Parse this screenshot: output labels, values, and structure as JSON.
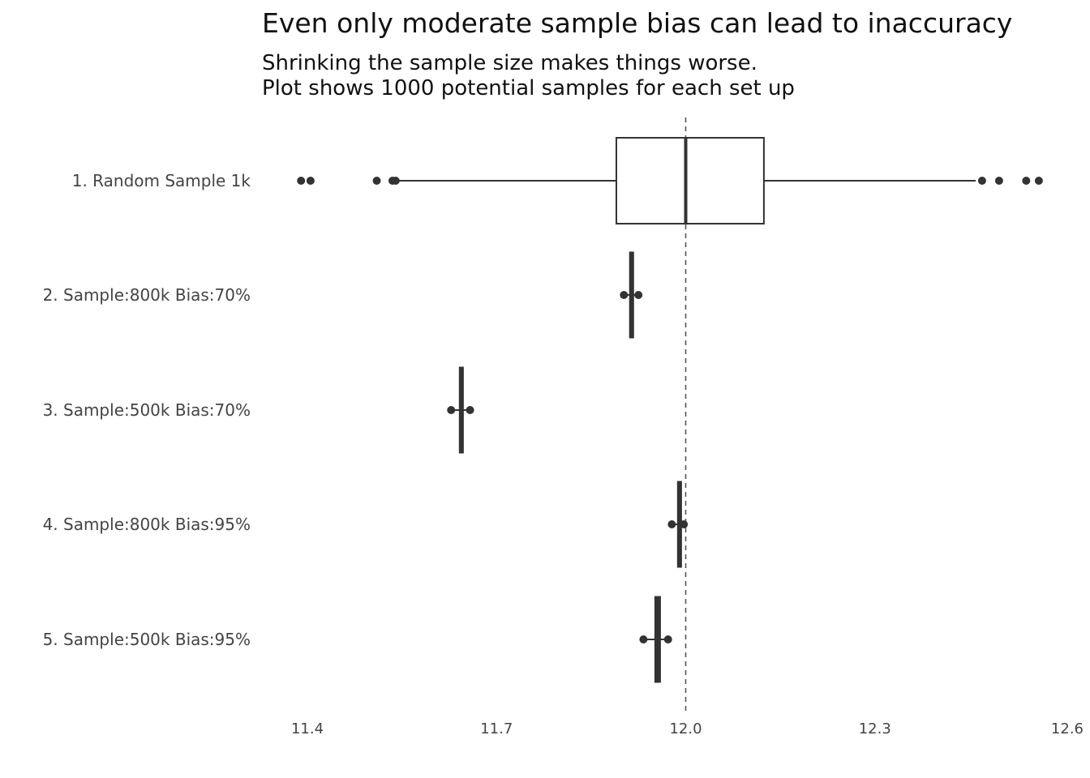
{
  "chart_data": {
    "type": "boxplot",
    "orientation": "horizontal",
    "title": "Even only moderate sample bias can lead to inaccuracy",
    "subtitle_lines": [
      "Shrinking the sample size makes things worse.",
      "Plot shows 1000 potential samples for each set up"
    ],
    "xlabel": "",
    "ylabel": "",
    "xlim": [
      11.35,
      12.6
    ],
    "x_ticks": [
      11.4,
      11.7,
      12.0,
      12.3,
      12.6
    ],
    "x_tick_labels": [
      "11.4",
      "11.7",
      "12.0",
      "12.3",
      "12.6"
    ],
    "reference_line": {
      "x": 12.0,
      "style": "dashed"
    },
    "grid": false,
    "categories": [
      "1. Random Sample 1k",
      "2. Sample:800k Bias:70%",
      "3. Sample:500k Bias:70%",
      "4. Sample:800k Bias:95%",
      "5. Sample:500k Bias:95%"
    ],
    "boxes": [
      {
        "q1": 11.89,
        "median": 12.0,
        "q3": 12.124,
        "whisker_low": 11.54,
        "whisker_high": 12.46,
        "outliers": [
          11.39,
          11.405,
          11.51,
          11.535,
          11.54,
          12.47,
          12.497,
          12.54,
          12.56
        ]
      },
      {
        "q1": 11.911,
        "median": 11.913,
        "q3": 11.915,
        "whisker_low": 11.905,
        "whisker_high": 11.92,
        "outliers": [
          11.902,
          11.925
        ]
      },
      {
        "q1": 11.641,
        "median": 11.643,
        "q3": 11.646,
        "whisker_low": 11.63,
        "whisker_high": 11.655,
        "outliers": [
          11.628,
          11.658
        ]
      },
      {
        "q1": 11.987,
        "median": 11.989,
        "q3": 11.991,
        "whisker_low": 11.98,
        "whisker_high": 11.996,
        "outliers": [
          11.978,
          11.997
        ]
      },
      {
        "q1": 11.951,
        "median": 11.955,
        "q3": 11.96,
        "whisker_low": 11.935,
        "whisker_high": 11.97,
        "outliers": [
          11.933,
          11.972
        ]
      }
    ],
    "colors": {
      "box_stroke": "#333333",
      "reference_line": "#555555",
      "text": "#444444"
    }
  }
}
